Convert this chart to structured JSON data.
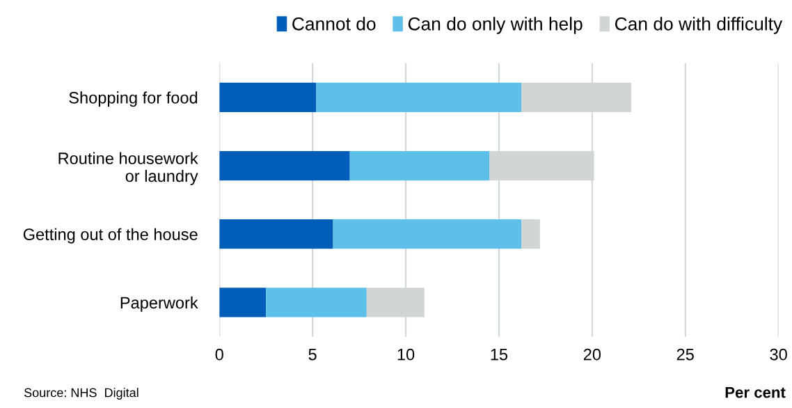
{
  "chart_data": {
    "type": "bar",
    "orientation": "horizontal",
    "stacked": true,
    "categories": [
      "Shopping for food",
      "Routine housework\nor laundry",
      "Getting out of the house",
      "Paperwork"
    ],
    "series": [
      {
        "name": "Cannot do",
        "color": "#005eb8",
        "values": [
          5.2,
          7.0,
          6.1,
          2.5
        ]
      },
      {
        "name": "Can do only with help",
        "color": "#5ec0e8",
        "values": [
          11.0,
          7.5,
          10.1,
          5.4
        ]
      },
      {
        "name": "Can do with difficulty",
        "color": "#d0d5d5",
        "values": [
          5.9,
          5.6,
          1.0,
          3.1
        ]
      }
    ],
    "xlim": [
      0,
      30
    ],
    "xticks": [
      0,
      5,
      10,
      15,
      20,
      25,
      30
    ],
    "grid": "x",
    "legend": "top right",
    "xlabel": "Per cent",
    "annotations": [
      "Source: NHS  Digital"
    ]
  }
}
